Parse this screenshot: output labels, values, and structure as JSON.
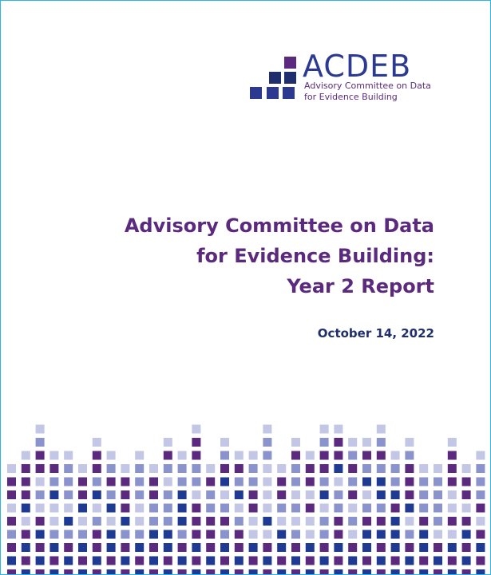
{
  "logo": {
    "acronym": "ACDEB",
    "name_lines": [
      "Advisory Committee on Data",
      "for Evidence Building"
    ]
  },
  "title_lines": [
    "Advisory Committee on Data",
    "for Evidence Building:",
    "Year 2 Report"
  ],
  "date": "October 14, 2022"
}
